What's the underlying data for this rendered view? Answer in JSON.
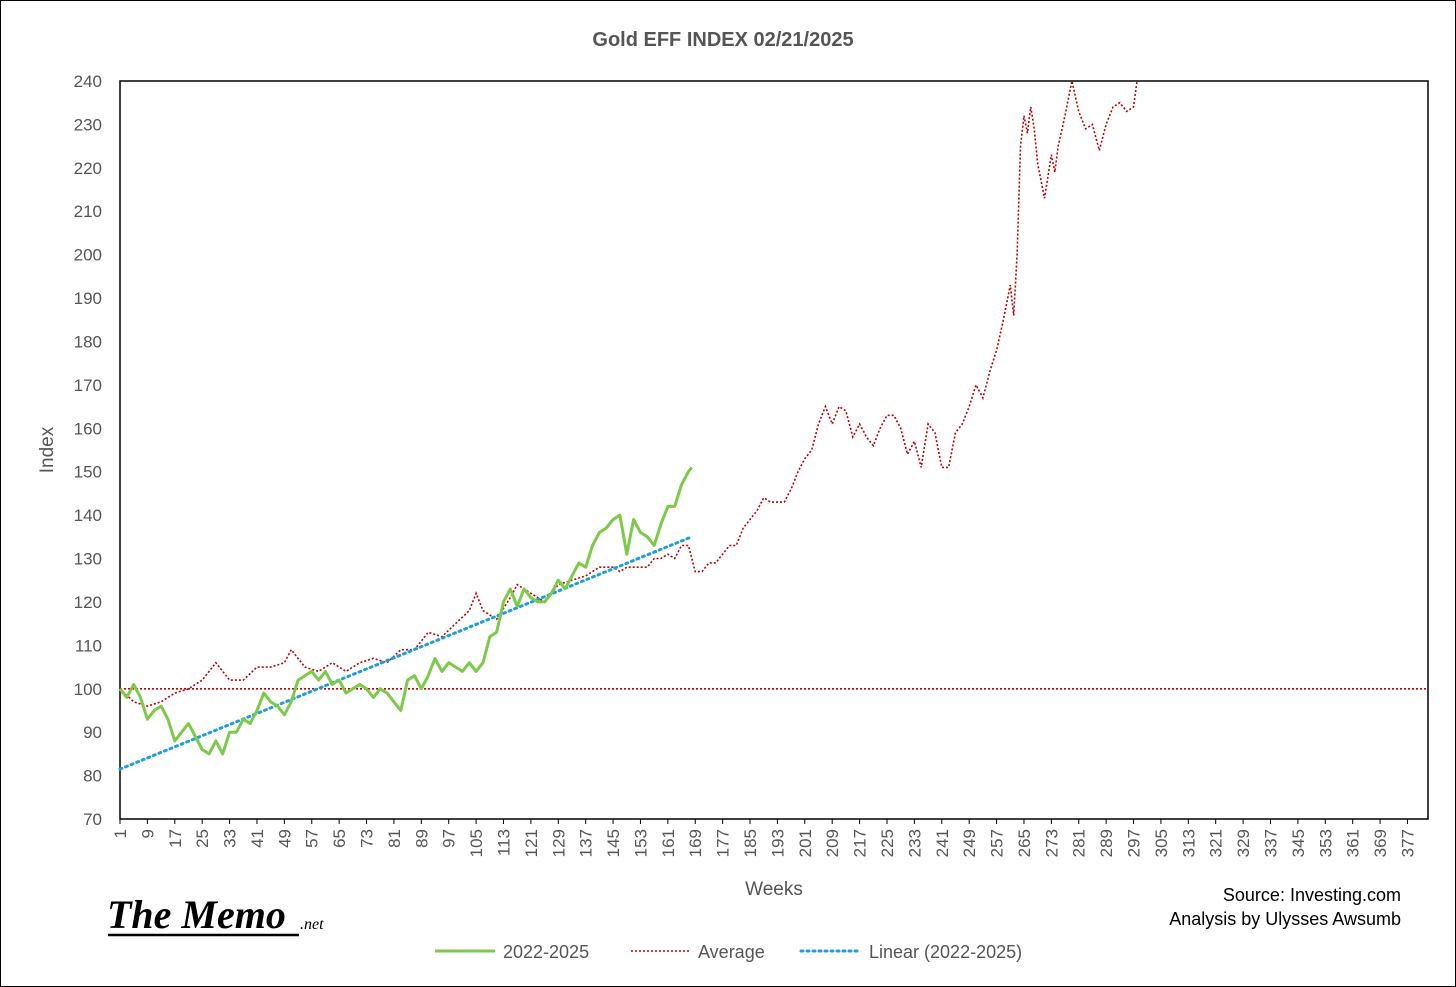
{
  "chart_data": {
    "type": "line",
    "title": "Gold EFF  INDEX 02/21/2025",
    "xlabel": "Weeks",
    "ylabel": "Index",
    "xlim": [
      1,
      383
    ],
    "ylim": [
      70,
      240
    ],
    "yticks": [
      70,
      80,
      90,
      100,
      110,
      120,
      130,
      140,
      150,
      160,
      170,
      180,
      190,
      200,
      210,
      220,
      230,
      240
    ],
    "xticks": [
      1,
      9,
      17,
      25,
      33,
      41,
      49,
      57,
      65,
      73,
      81,
      89,
      97,
      105,
      113,
      121,
      129,
      137,
      145,
      153,
      161,
      169,
      177,
      185,
      193,
      201,
      209,
      217,
      225,
      233,
      241,
      249,
      257,
      265,
      273,
      281,
      289,
      297,
      305,
      313,
      321,
      329,
      337,
      345,
      353,
      361,
      369,
      377
    ],
    "legend_position": "bottom",
    "grid": false,
    "series": [
      {
        "name": "2022-2025",
        "color": "#7dc94a",
        "style": "solid",
        "points": [
          [
            1,
            100
          ],
          [
            3,
            98
          ],
          [
            5,
            101
          ],
          [
            7,
            98
          ],
          [
            9,
            93
          ],
          [
            11,
            95
          ],
          [
            13,
            96
          ],
          [
            15,
            93
          ],
          [
            17,
            88
          ],
          [
            19,
            90
          ],
          [
            21,
            92
          ],
          [
            23,
            89
          ],
          [
            25,
            86
          ],
          [
            27,
            85
          ],
          [
            29,
            88
          ],
          [
            31,
            85
          ],
          [
            33,
            90
          ],
          [
            35,
            90
          ],
          [
            37,
            93
          ],
          [
            39,
            92
          ],
          [
            41,
            95
          ],
          [
            43,
            99
          ],
          [
            45,
            97
          ],
          [
            47,
            96
          ],
          [
            49,
            94
          ],
          [
            51,
            97
          ],
          [
            53,
            102
          ],
          [
            55,
            103
          ],
          [
            57,
            104
          ],
          [
            59,
            102
          ],
          [
            61,
            104
          ],
          [
            63,
            101
          ],
          [
            65,
            102
          ],
          [
            67,
            99
          ],
          [
            69,
            100
          ],
          [
            71,
            101
          ],
          [
            73,
            100
          ],
          [
            75,
            98
          ],
          [
            77,
            100
          ],
          [
            79,
            99
          ],
          [
            81,
            97
          ],
          [
            83,
            95
          ],
          [
            85,
            102
          ],
          [
            87,
            103
          ],
          [
            89,
            100
          ],
          [
            91,
            103
          ],
          [
            93,
            107
          ],
          [
            95,
            104
          ],
          [
            97,
            106
          ],
          [
            99,
            105
          ],
          [
            101,
            104
          ],
          [
            103,
            106
          ],
          [
            105,
            104
          ],
          [
            107,
            106
          ],
          [
            109,
            112
          ],
          [
            111,
            113
          ],
          [
            113,
            120
          ],
          [
            115,
            123
          ],
          [
            117,
            119
          ],
          [
            119,
            123
          ],
          [
            121,
            121
          ],
          [
            123,
            120
          ],
          [
            125,
            120
          ],
          [
            127,
            122
          ],
          [
            129,
            125
          ],
          [
            131,
            123
          ],
          [
            133,
            126
          ],
          [
            135,
            129
          ],
          [
            137,
            128
          ],
          [
            139,
            133
          ],
          [
            141,
            136
          ],
          [
            143,
            137
          ],
          [
            145,
            139
          ],
          [
            147,
            140
          ],
          [
            149,
            131
          ],
          [
            151,
            139
          ],
          [
            153,
            136
          ],
          [
            155,
            135
          ],
          [
            157,
            133
          ],
          [
            159,
            138
          ],
          [
            161,
            142
          ],
          [
            163,
            142
          ],
          [
            165,
            147
          ],
          [
            167,
            150
          ],
          [
            168,
            151
          ]
        ]
      },
      {
        "name": "Average",
        "color": "#c00000",
        "style": "dotted",
        "points": [
          [
            1,
            100
          ],
          [
            5,
            97
          ],
          [
            9,
            96
          ],
          [
            13,
            97
          ],
          [
            17,
            99
          ],
          [
            21,
            100
          ],
          [
            25,
            102
          ],
          [
            29,
            106
          ],
          [
            33,
            102
          ],
          [
            37,
            102
          ],
          [
            41,
            105
          ],
          [
            45,
            105
          ],
          [
            49,
            106
          ],
          [
            51,
            109
          ],
          [
            55,
            105
          ],
          [
            59,
            104
          ],
          [
            63,
            106
          ],
          [
            67,
            104
          ],
          [
            71,
            106
          ],
          [
            75,
            107
          ],
          [
            79,
            106
          ],
          [
            83,
            109
          ],
          [
            87,
            109
          ],
          [
            91,
            113
          ],
          [
            95,
            112
          ],
          [
            99,
            115
          ],
          [
            103,
            118
          ],
          [
            105,
            122
          ],
          [
            107,
            118
          ],
          [
            111,
            116
          ],
          [
            115,
            121
          ],
          [
            117,
            124
          ],
          [
            121,
            122
          ],
          [
            125,
            120
          ],
          [
            129,
            124
          ],
          [
            133,
            125
          ],
          [
            137,
            126
          ],
          [
            141,
            128
          ],
          [
            145,
            128
          ],
          [
            147,
            127
          ],
          [
            149,
            128
          ],
          [
            151,
            128
          ],
          [
            153,
            128
          ],
          [
            155,
            128
          ],
          [
            157,
            130
          ],
          [
            159,
            130
          ],
          [
            161,
            131
          ],
          [
            163,
            130
          ],
          [
            165,
            133
          ],
          [
            167,
            133
          ],
          [
            169,
            127
          ],
          [
            171,
            127
          ],
          [
            173,
            129
          ],
          [
            175,
            129
          ],
          [
            177,
            131
          ],
          [
            179,
            133
          ],
          [
            181,
            133
          ],
          [
            183,
            137
          ],
          [
            185,
            139
          ],
          [
            187,
            141
          ],
          [
            189,
            144
          ],
          [
            191,
            143
          ],
          [
            193,
            143
          ],
          [
            195,
            143
          ],
          [
            197,
            146
          ],
          [
            199,
            150
          ],
          [
            201,
            153
          ],
          [
            203,
            155
          ],
          [
            205,
            161
          ],
          [
            207,
            165
          ],
          [
            209,
            161
          ],
          [
            211,
            165
          ],
          [
            213,
            164
          ],
          [
            215,
            158
          ],
          [
            217,
            161
          ],
          [
            219,
            158
          ],
          [
            221,
            156
          ],
          [
            223,
            160
          ],
          [
            225,
            163
          ],
          [
            227,
            163
          ],
          [
            229,
            160
          ],
          [
            231,
            154
          ],
          [
            233,
            157
          ],
          [
            235,
            151
          ],
          [
            237,
            161
          ],
          [
            239,
            159
          ],
          [
            241,
            151
          ],
          [
            243,
            151
          ],
          [
            245,
            159
          ],
          [
            247,
            161
          ],
          [
            249,
            165
          ],
          [
            251,
            170
          ],
          [
            253,
            167
          ],
          [
            255,
            173
          ],
          [
            257,
            178
          ],
          [
            259,
            185
          ],
          [
            261,
            193
          ],
          [
            262,
            186
          ],
          [
            263,
            200
          ],
          [
            264,
            225
          ],
          [
            265,
            232
          ],
          [
            266,
            228
          ],
          [
            267,
            234
          ],
          [
            268,
            229
          ],
          [
            269,
            221
          ],
          [
            271,
            213
          ],
          [
            273,
            223
          ],
          [
            274,
            219
          ],
          [
            275,
            225
          ],
          [
            277,
            232
          ],
          [
            279,
            240
          ],
          [
            281,
            233
          ],
          [
            283,
            229
          ],
          [
            285,
            230
          ],
          [
            287,
            224
          ],
          [
            289,
            230
          ],
          [
            291,
            234
          ],
          [
            293,
            235
          ],
          [
            295,
            233
          ],
          [
            297,
            234
          ],
          [
            298,
            240
          ]
        ]
      },
      {
        "name": "Linear (2022-2025)",
        "color": "#1f9fd6",
        "style": "dotted",
        "points": [
          [
            1,
            81.5
          ],
          [
            168,
            135
          ]
        ]
      },
      {
        "name": "",
        "color": "#c00000",
        "style": "dotted",
        "points": [
          [
            1,
            100
          ],
          [
            383,
            100
          ]
        ]
      }
    ]
  },
  "logo": {
    "main": "The Memo",
    "suffix": ".net"
  },
  "source": {
    "line1": "Source: Investing.com",
    "line2": "Analysis by Ulysses Awsumb"
  }
}
